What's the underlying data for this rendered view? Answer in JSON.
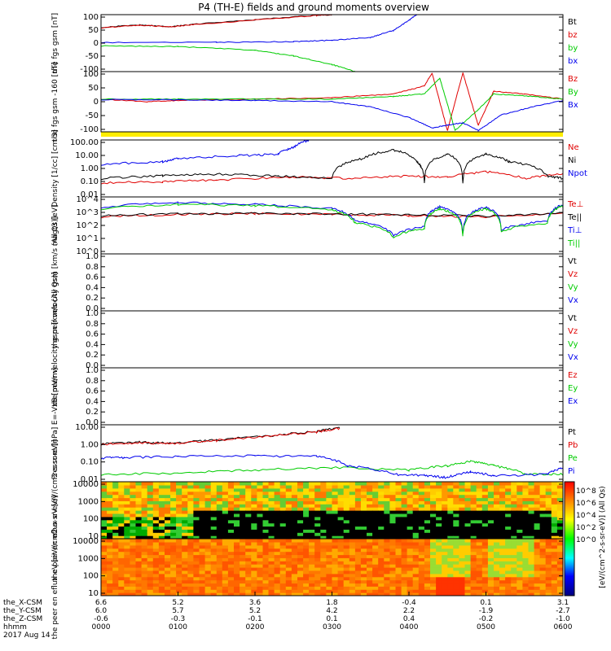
{
  "title": "P4 (TH-E) fields and ground moments overview",
  "colors": {
    "black": "#000000",
    "red": "#e00000",
    "green": "#00cc00",
    "blue": "#0000ee",
    "yellow": "#ffee00"
  },
  "time_axis": {
    "tick_labels": [
      "0000",
      "0100",
      "0200",
      "0300",
      "0400",
      "0500",
      "0600"
    ],
    "row_labels": [
      "the_X-CSM",
      "the_Y-CSM",
      "the_Z-CSM",
      "hhmm",
      "2017 Aug 14"
    ],
    "x_csm": [
      "6.6",
      "5.2",
      "3.6",
      "1.8",
      "-0.4",
      "0.1",
      "3.1"
    ],
    "y_csm": [
      "6.0",
      "5.7",
      "5.2",
      "4.2",
      "2.2",
      "-1.9",
      "-2.7"
    ],
    "z_csm": [
      "-0.6",
      "-0.3",
      "-0.1",
      "0.1",
      "0.4",
      "-0.2",
      "-1.0"
    ]
  },
  "chart_data": [
    {
      "type": "line",
      "ylabel": "the fgs gsm [nT]",
      "ylim": [
        -100,
        100
      ],
      "ytick_labels": [
        "100",
        "50",
        "0",
        "-50",
        "-100"
      ],
      "legend": [
        "Bt",
        "bz",
        "by",
        "bx"
      ],
      "series": [
        {
          "name": "Bt",
          "color": "black",
          "points": [
            [
              0.0,
              55
            ],
            [
              0.5,
              64
            ],
            [
              0.9,
              58
            ],
            [
              1.2,
              66
            ],
            [
              2.0,
              82
            ],
            [
              2.8,
              98
            ],
            [
              3.0,
              100
            ]
          ]
        },
        {
          "name": "bz",
          "color": "red",
          "points": [
            [
              0.0,
              54
            ],
            [
              0.5,
              63
            ],
            [
              0.9,
              57
            ],
            [
              1.2,
              65
            ],
            [
              2.0,
              81
            ],
            [
              2.8,
              97
            ],
            [
              3.0,
              100
            ]
          ]
        },
        {
          "name": "by",
          "color": "green",
          "points": [
            [
              0.0,
              -10
            ],
            [
              1.0,
              -12
            ],
            [
              2.0,
              -25
            ],
            [
              2.5,
              -45
            ],
            [
              3.0,
              -75
            ],
            [
              3.3,
              -100
            ]
          ]
        },
        {
          "name": "bx",
          "color": "blue",
          "points": [
            [
              0.0,
              2
            ],
            [
              1.5,
              3
            ],
            [
              2.5,
              5
            ],
            [
              3.0,
              10
            ],
            [
              3.5,
              20
            ],
            [
              3.8,
              45
            ],
            [
              4.0,
              80
            ],
            [
              4.1,
              100
            ]
          ]
        }
      ]
    },
    {
      "type": "line",
      "ylabel": "the fgs gsm -160 [nT]",
      "ylim": [
        -125,
        105
      ],
      "ytick_labels": [
        "100",
        "50",
        "0",
        "-50",
        "-100"
      ],
      "legend": [
        "Bz",
        "By",
        "Bx"
      ],
      "series": [
        {
          "name": "Bz",
          "color": "red",
          "points": [
            [
              0.0,
              0
            ],
            [
              0.6,
              -10
            ],
            [
              1.0,
              -5
            ],
            [
              2.0,
              0
            ],
            [
              3.0,
              5
            ],
            [
              3.8,
              20
            ],
            [
              4.2,
              50
            ],
            [
              4.3,
              100
            ],
            [
              4.5,
              -120
            ],
            [
              4.7,
              100
            ],
            [
              4.9,
              -100
            ],
            [
              5.1,
              30
            ],
            [
              5.5,
              20
            ],
            [
              6.0,
              0
            ]
          ]
        },
        {
          "name": "By",
          "color": "green",
          "points": [
            [
              0.0,
              0
            ],
            [
              1.0,
              0
            ],
            [
              2.0,
              0
            ],
            [
              3.0,
              0
            ],
            [
              3.8,
              10
            ],
            [
              4.2,
              20
            ],
            [
              4.4,
              80
            ],
            [
              4.6,
              -120
            ],
            [
              4.9,
              -40
            ],
            [
              5.1,
              20
            ],
            [
              5.6,
              10
            ],
            [
              6.0,
              0
            ]
          ]
        },
        {
          "name": "Bx",
          "color": "blue",
          "points": [
            [
              0.0,
              -2
            ],
            [
              1.0,
              -3
            ],
            [
              2.0,
              -5
            ],
            [
              3.0,
              -10
            ],
            [
              3.5,
              -30
            ],
            [
              4.0,
              -70
            ],
            [
              4.3,
              -110
            ],
            [
              4.5,
              -100
            ],
            [
              4.7,
              -90
            ],
            [
              4.9,
              -120
            ],
            [
              5.2,
              -60
            ],
            [
              5.6,
              -30
            ],
            [
              6.0,
              -5
            ]
          ]
        }
      ]
    },
    {
      "type": "line",
      "ylabel": "Density [1/cc] [cm-3]",
      "ylog": true,
      "ylim": [
        0.01,
        100
      ],
      "ytick_labels": [
        "100.00",
        "10.00",
        "1.00",
        "0.10",
        "0.01"
      ],
      "legend": [
        "Ne",
        "Ni",
        "Npot"
      ],
      "series": [
        {
          "name": "Ne",
          "color": "red",
          "points": [
            [
              0.0,
              0.1
            ],
            [
              0.8,
              0.12
            ],
            [
              1.5,
              0.15
            ],
            [
              2.5,
              0.25
            ],
            [
              3.3,
              0.2
            ],
            [
              4.0,
              0.3
            ],
            [
              4.5,
              0.25
            ],
            [
              5.0,
              0.6
            ],
            [
              5.5,
              0.2
            ],
            [
              6.0,
              0.4
            ]
          ]
        },
        {
          "name": "Ni",
          "color": "black",
          "points": [
            [
              0.0,
              0.2
            ],
            [
              0.8,
              0.3
            ],
            [
              1.5,
              0.4
            ],
            [
              2.3,
              0.3
            ],
            [
              3.0,
              0.2
            ],
            [
              3.4,
              5
            ],
            [
              3.8,
              20
            ],
            [
              4.1,
              3
            ],
            [
              4.2,
              0.1
            ],
            [
              4.5,
              10
            ],
            [
              4.7,
              0.1
            ],
            [
              5.0,
              10
            ],
            [
              5.3,
              3
            ],
            [
              5.8,
              0.3
            ],
            [
              6.0,
              0.2
            ]
          ]
        },
        {
          "name": "Npot",
          "color": "blue",
          "points": [
            [
              0.0,
              2
            ],
            [
              0.8,
              3
            ],
            [
              1.0,
              5
            ],
            [
              1.8,
              8
            ],
            [
              2.3,
              10
            ],
            [
              2.5,
              30
            ],
            [
              2.7,
              100
            ]
          ]
        }
      ]
    },
    {
      "type": "line",
      "ylabel": "magt3 [eV]",
      "ylog": true,
      "ylim": [
        1,
        10000
      ],
      "ytick_labels": [
        "10^4",
        "10^3",
        "10^2",
        "10^1",
        "10^0"
      ],
      "legend": [
        "Te⊥",
        "Te||",
        "Ti⊥",
        "Ti||"
      ],
      "series": [
        {
          "name": "Te⊥",
          "color": "red",
          "points": [
            [
              0.0,
              400
            ],
            [
              1.0,
              600
            ],
            [
              2.0,
              700
            ],
            [
              3.0,
              600
            ],
            [
              4.0,
              500
            ],
            [
              5.0,
              400
            ],
            [
              6.0,
              700
            ]
          ]
        },
        {
          "name": "Te||",
          "color": "black",
          "points": [
            [
              0.0,
              500
            ],
            [
              1.0,
              650
            ],
            [
              2.0,
              700
            ],
            [
              3.0,
              650
            ],
            [
              4.0,
              550
            ],
            [
              5.0,
              450
            ],
            [
              6.0,
              750
            ]
          ]
        },
        {
          "name": "Ti⊥",
          "color": "blue",
          "points": [
            [
              0.0,
              2000
            ],
            [
              1.0,
              4000
            ],
            [
              2.0,
              3000
            ],
            [
              3.0,
              1500
            ],
            [
              3.3,
              200
            ],
            [
              3.8,
              20
            ],
            [
              4.2,
              80
            ],
            [
              4.4,
              2000
            ],
            [
              4.7,
              30
            ],
            [
              5.0,
              2000
            ],
            [
              5.2,
              50
            ],
            [
              5.8,
              200
            ],
            [
              6.0,
              3000
            ]
          ]
        },
        {
          "name": "Ti||",
          "color": "green",
          "points": [
            [
              0.0,
              1500
            ],
            [
              1.0,
              3000
            ],
            [
              2.0,
              2500
            ],
            [
              3.0,
              1200
            ],
            [
              3.3,
              150
            ],
            [
              3.8,
              15
            ],
            [
              4.2,
              60
            ],
            [
              4.4,
              1500
            ],
            [
              4.7,
              20
            ],
            [
              5.0,
              1500
            ],
            [
              5.2,
              40
            ],
            [
              5.8,
              150
            ],
            [
              6.0,
              2500
            ]
          ]
        }
      ]
    },
    {
      "type": "line",
      "ylabel": "the peir velocity gsm [km/s (All Qs)]",
      "ylim": [
        0,
        1
      ],
      "ytick_labels": [
        "1.0",
        "0.8",
        "0.6",
        "0.4",
        "0.2",
        "0.0"
      ],
      "legend": [
        "Vt",
        "Vz",
        "Vy",
        "Vx"
      ],
      "series": []
    },
    {
      "type": "line",
      "ylabel": "the peer velocity gsm [km/s (All Qs)]",
      "ylim": [
        0,
        1
      ],
      "ytick_labels": [
        "1.0",
        "0.8",
        "0.6",
        "0.4",
        "0.2",
        "0.0"
      ],
      "legend": [
        "Vt",
        "Vz",
        "Vy",
        "Vx"
      ],
      "series": []
    },
    {
      "type": "line",
      "ylabel": "E=-VxB [mV/m]",
      "ylim": [
        0,
        1
      ],
      "ytick_labels": [
        "1.0",
        "0.8",
        "0.6",
        "0.4",
        "0.2",
        "0.0"
      ],
      "legend": [
        "Ez",
        "Ey",
        "Ex"
      ],
      "series": []
    },
    {
      "type": "line",
      "ylabel": "Pressure [nPa]",
      "ylog": true,
      "ylim": [
        0.003,
        30
      ],
      "ytick_labels": [
        "10.00",
        "1.00",
        "0.10",
        "0.01"
      ],
      "legend": [
        "Pt",
        "Pb",
        "Pe",
        "Pi"
      ],
      "series": [
        {
          "name": "Pt",
          "color": "black",
          "points": [
            [
              0.0,
              1.4
            ],
            [
              0.5,
              1.8
            ],
            [
              0.9,
              1.5
            ],
            [
              1.5,
              2.5
            ],
            [
              2.2,
              5
            ],
            [
              2.8,
              10
            ],
            [
              3.1,
              18
            ]
          ]
        },
        {
          "name": "Pb",
          "color": "red",
          "points": [
            [
              0.0,
              1.3
            ],
            [
              0.5,
              1.7
            ],
            [
              0.9,
              1.4
            ],
            [
              1.5,
              2.4
            ],
            [
              2.2,
              4.8
            ],
            [
              2.8,
              9.5
            ],
            [
              3.1,
              17
            ]
          ]
        },
        {
          "name": "Pe",
          "color": "green",
          "points": [
            [
              0.0,
              0.01
            ],
            [
              1.0,
              0.012
            ],
            [
              2.0,
              0.02
            ],
            [
              3.0,
              0.03
            ],
            [
              4.0,
              0.02
            ],
            [
              4.5,
              0.04
            ],
            [
              4.8,
              0.08
            ],
            [
              5.1,
              0.04
            ],
            [
              5.5,
              0.01
            ],
            [
              6.0,
              0.01
            ]
          ]
        },
        {
          "name": "Pi",
          "color": "blue",
          "points": [
            [
              0.0,
              0.14
            ],
            [
              0.3,
              0.15
            ],
            [
              1.0,
              0.18
            ],
            [
              2.0,
              0.2
            ],
            [
              2.8,
              0.18
            ],
            [
              3.2,
              0.04
            ],
            [
              3.8,
              0.01
            ],
            [
              4.2,
              0.008
            ],
            [
              4.5,
              0.006
            ],
            [
              4.8,
              0.015
            ],
            [
              5.1,
              0.008
            ],
            [
              5.8,
              0.01
            ],
            [
              6.0,
              0.03
            ]
          ]
        }
      ]
    },
    {
      "type": "heatmap",
      "ylabel": "the peir en eflux eV [eV/(cm2-s-sr-eV)]",
      "ylog": true,
      "ylim": [
        5,
        25000
      ],
      "ytick_labels": [
        "10000",
        "1000",
        "100",
        "10"
      ]
    },
    {
      "type": "heatmap",
      "ylabel": "the peer en eflux eV [eV/(cm2-s-sr-eV)]",
      "ylog": true,
      "ylim": [
        5,
        25000
      ],
      "ytick_labels": [
        "10000",
        "1000",
        "100",
        "10"
      ]
    }
  ],
  "colorbar": {
    "tick_labels": [
      "10^8",
      "10^6",
      "10^4",
      "10^2",
      "10^0"
    ],
    "label": "[eV/(cm^2-s-sr-eV)] (All Qs)"
  }
}
